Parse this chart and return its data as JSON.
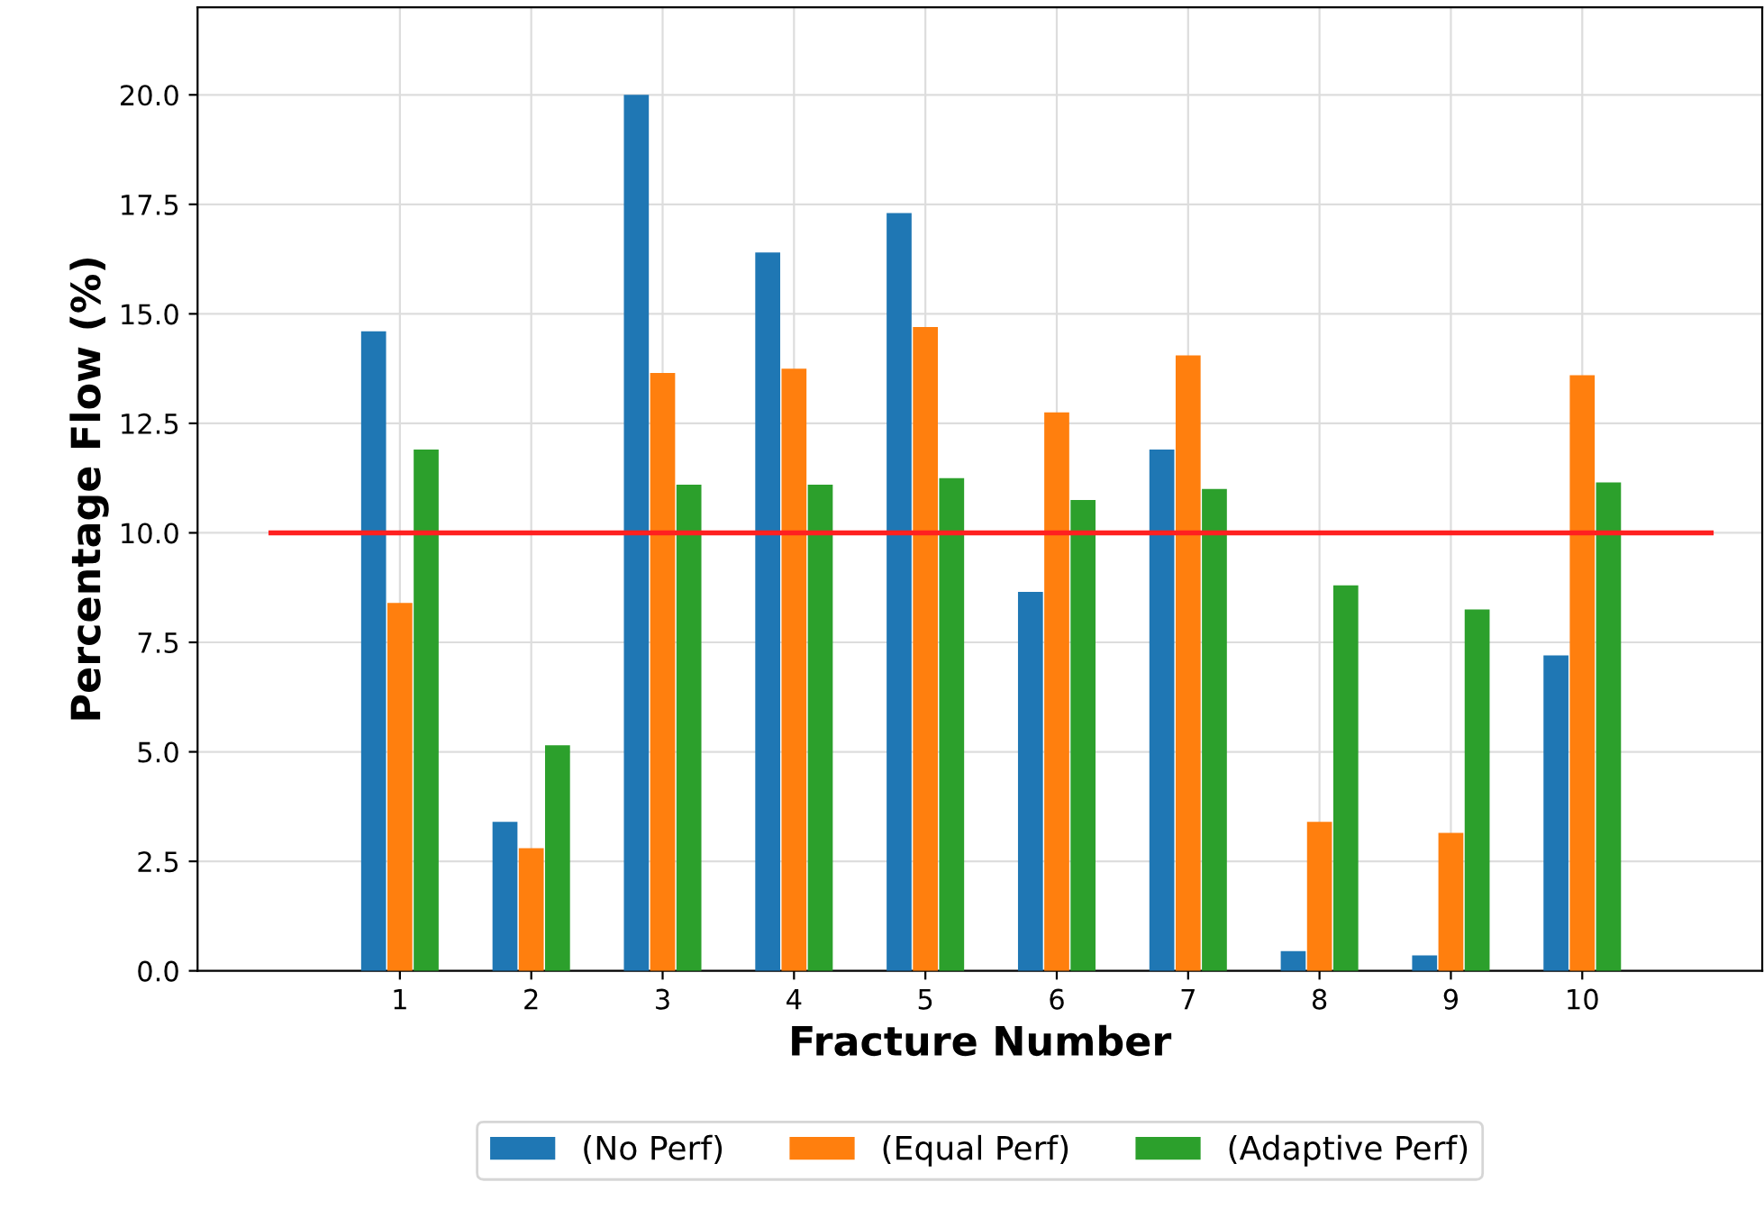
{
  "chart_data": {
    "type": "bar",
    "xlabel": "Fracture Number",
    "ylabel": "Percentage Flow (%)",
    "x": [
      1,
      2,
      3,
      4,
      5,
      6,
      7,
      8,
      9,
      10
    ],
    "xlim": [
      -0.54,
      11.37
    ],
    "xticks": [
      1,
      2,
      3,
      4,
      5,
      6,
      7,
      8,
      9,
      10
    ],
    "ylim": [
      0,
      22
    ],
    "yticks": [
      {
        "value": 0,
        "label": "0.0"
      },
      {
        "value": 2.5,
        "label": "2.5"
      },
      {
        "value": 5,
        "label": "5.0"
      },
      {
        "value": 7.5,
        "label": "7.5"
      },
      {
        "value": 10,
        "label": "10.0"
      },
      {
        "value": 12.5,
        "label": "12.5"
      },
      {
        "value": 15,
        "label": "15.0"
      },
      {
        "value": 17.5,
        "label": "17.5"
      },
      {
        "value": 20,
        "label": "20.0"
      }
    ],
    "series": [
      {
        "name": "(No Perf)",
        "color": "#1f77b4",
        "values": [
          14.6,
          3.4,
          20.0,
          16.4,
          17.3,
          8.65,
          11.9,
          0.45,
          0.35,
          7.2
        ]
      },
      {
        "name": "(Equal Perf)",
        "color": "#ff7f0e",
        "values": [
          8.4,
          2.8,
          13.65,
          13.75,
          14.7,
          12.75,
          14.05,
          3.4,
          3.15,
          13.6
        ]
      },
      {
        "name": "(Adaptive Perf)",
        "color": "#2ca02c",
        "values": [
          11.9,
          5.15,
          11.1,
          11.1,
          11.25,
          10.75,
          11.0,
          8.8,
          8.25,
          11.15
        ]
      }
    ],
    "ref_lines": [
      {
        "axis": "y",
        "value": 10,
        "color": "#ff2020"
      }
    ],
    "grid": true,
    "legend": "bottom"
  }
}
